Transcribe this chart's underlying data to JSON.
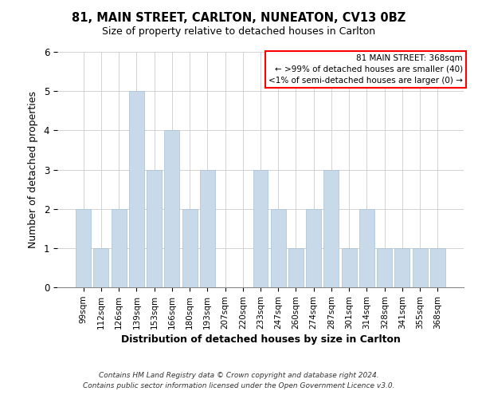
{
  "title": "81, MAIN STREET, CARLTON, NUNEATON, CV13 0BZ",
  "subtitle": "Size of property relative to detached houses in Carlton",
  "xlabel": "Distribution of detached houses by size in Carlton",
  "ylabel": "Number of detached properties",
  "bar_color": "#c8d9ea",
  "bar_edgecolor": "#a8c0d6",
  "categories": [
    "99sqm",
    "112sqm",
    "126sqm",
    "139sqm",
    "153sqm",
    "166sqm",
    "180sqm",
    "193sqm",
    "207sqm",
    "220sqm",
    "233sqm",
    "247sqm",
    "260sqm",
    "274sqm",
    "287sqm",
    "301sqm",
    "314sqm",
    "328sqm",
    "341sqm",
    "355sqm",
    "368sqm"
  ],
  "values": [
    2,
    1,
    2,
    5,
    3,
    4,
    2,
    3,
    0,
    0,
    3,
    2,
    1,
    2,
    3,
    1,
    2,
    1,
    1,
    1,
    1
  ],
  "ylim": [
    0,
    6
  ],
  "yticks": [
    0,
    1,
    2,
    3,
    4,
    5,
    6
  ],
  "legend_title": "81 MAIN STREET: 368sqm",
  "legend_line1": "← >99% of detached houses are smaller (40)",
  "legend_line2": "<1% of semi-detached houses are larger (0) →",
  "legend_box_facecolor": "white",
  "legend_box_edgecolor": "red",
  "footer_line1": "Contains HM Land Registry data © Crown copyright and database right 2024.",
  "footer_line2": "Contains public sector information licensed under the Open Government Licence v3.0.",
  "background_color": "white",
  "grid_color": "#cccccc",
  "title_fontsize": 10.5,
  "subtitle_fontsize": 9,
  "axis_label_fontsize": 9,
  "tick_fontsize": 7.5,
  "legend_fontsize": 7.5,
  "footer_fontsize": 6.5
}
